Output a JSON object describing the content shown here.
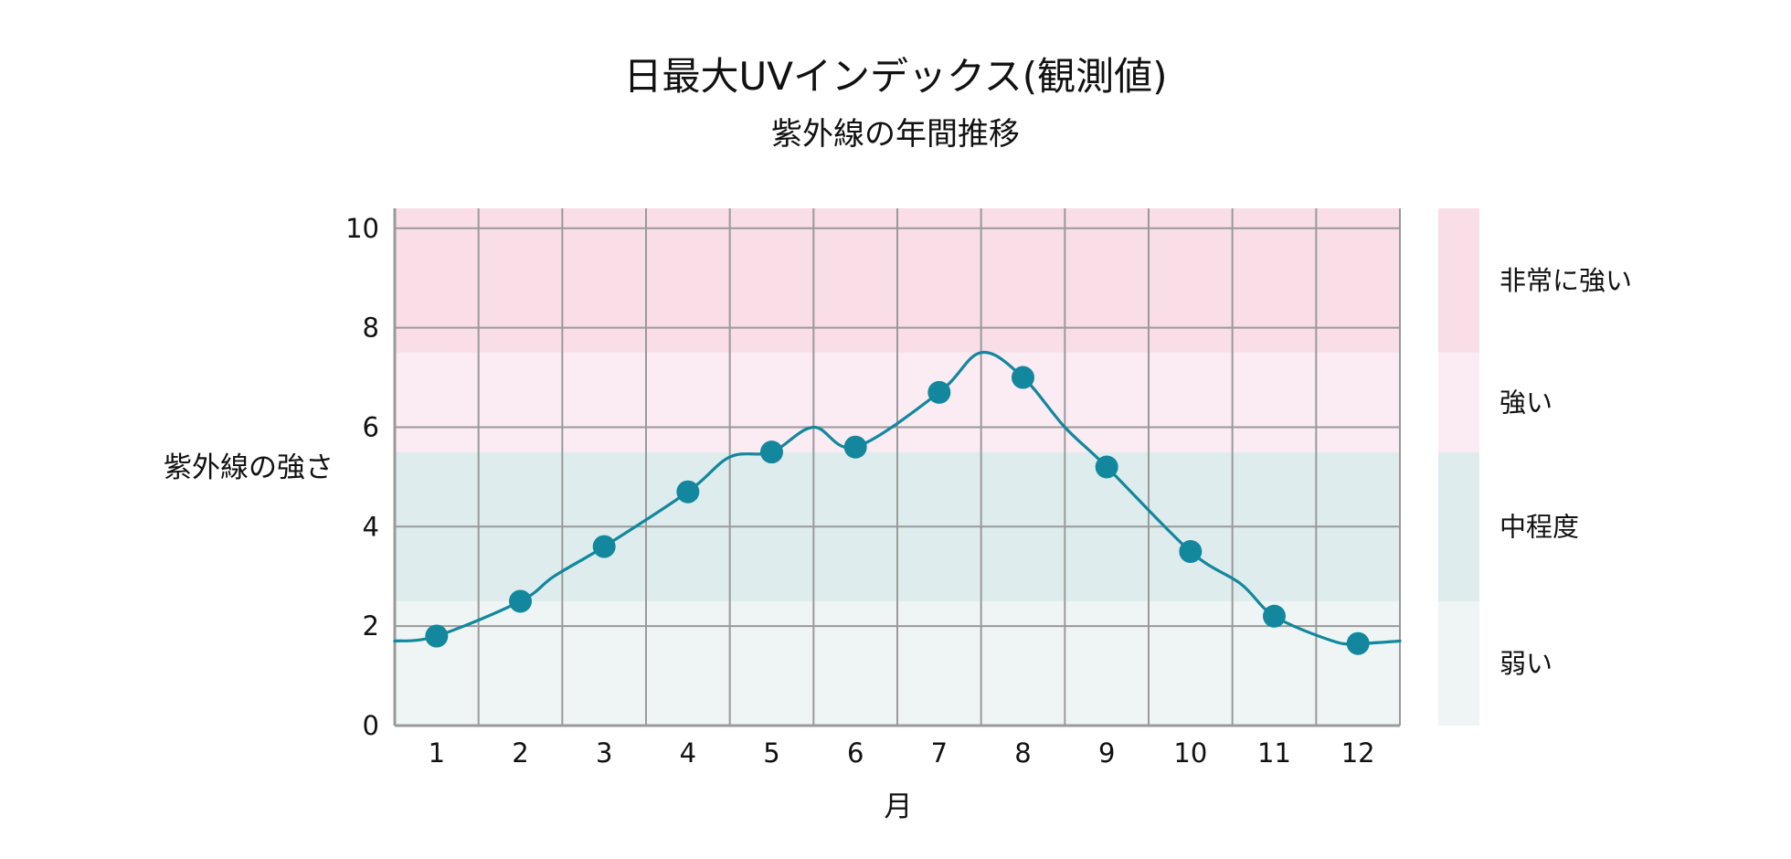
{
  "chart_data": {
    "type": "line",
    "title": "日最大UVインデックス(観測値)",
    "subtitle": "紫外線の年間推移",
    "xlabel": "月",
    "ylabel": "紫外線の強さ",
    "categories": [
      "1",
      "2",
      "3",
      "4",
      "5",
      "6",
      "7",
      "8",
      "9",
      "10",
      "11",
      "12"
    ],
    "x": [
      1,
      2,
      3,
      4,
      5,
      6,
      7,
      8,
      9,
      10,
      11,
      12
    ],
    "values": [
      1.8,
      2.5,
      3.6,
      4.7,
      5.5,
      5.6,
      6.7,
      7.0,
      5.2,
      3.5,
      2.2,
      1.65
    ],
    "curve": {
      "x": [
        0.5,
        1,
        2,
        2.4,
        3,
        4,
        4.5,
        5,
        5.5,
        6,
        7,
        7.5,
        8,
        8.5,
        9,
        10,
        10.6,
        11,
        11.7,
        12,
        12.5
      ],
      "y": [
        1.7,
        1.8,
        2.5,
        3.0,
        3.6,
        4.7,
        5.4,
        5.5,
        6.0,
        5.6,
        6.7,
        7.5,
        7.0,
        6.0,
        5.2,
        3.5,
        2.85,
        2.2,
        1.7,
        1.65,
        1.7
      ]
    },
    "ylim": [
      0,
      10.4
    ],
    "yticks": [
      0,
      2,
      4,
      6,
      8,
      10
    ],
    "bands": [
      {
        "label": "弱い",
        "from": 0,
        "to": 2.5,
        "color": "#eef5f4"
      },
      {
        "label": "中程度",
        "from": 2.5,
        "to": 5.5,
        "color": "#dfeced"
      },
      {
        "label": "強い",
        "from": 5.5,
        "to": 7.5,
        "color": "#fbebf2"
      },
      {
        "label": "非常に強い",
        "from": 7.5,
        "to": 10.4,
        "color": "#f9dde7"
      }
    ],
    "line_color": "#12879d",
    "grid": true,
    "legend": "right"
  }
}
